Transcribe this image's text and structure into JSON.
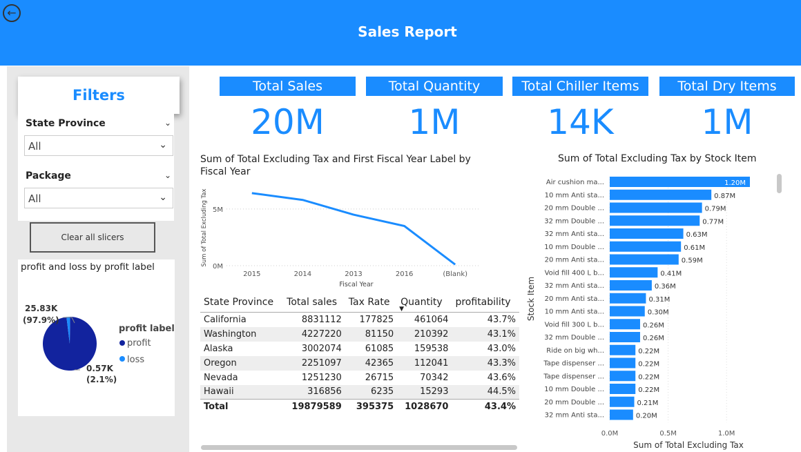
{
  "header": {
    "title": "Sales Report",
    "back_icon": "back-arrow-icon"
  },
  "filters": {
    "title": "Filters",
    "slicers": [
      {
        "label": "State Province",
        "value": "All"
      },
      {
        "label": "Package",
        "value": "All"
      }
    ],
    "clear_label": "Clear all slicers"
  },
  "kpis": [
    {
      "label": "Total Sales",
      "value": "20M"
    },
    {
      "label": "Total Quantity",
      "value": "1M"
    },
    {
      "label": "Total Chiller Items",
      "value": "14K"
    },
    {
      "label": "Total Dry Items",
      "value": "1M"
    }
  ],
  "pie": {
    "title": "profit and loss by profit label",
    "legend_title": "profit label",
    "slices": [
      {
        "label": "profit",
        "value": 25.83,
        "data_label": "25.83K",
        "pct_label": "(97.9%)",
        "color": "#12239e"
      },
      {
        "label": "loss",
        "value": 0.57,
        "data_label": "0.57K",
        "pct_label": "(2.1%)",
        "color": "#1a8cff"
      }
    ]
  },
  "line_chart": {
    "title": "Sum of Total Excluding Tax and First Fiscal Year Label by Fiscal Year",
    "xlabel": "Fiscal Year",
    "ylabel": "Sum of Total Excluding Tax",
    "y_ticks": [
      "0M",
      "5M"
    ],
    "color": "#1a8cff"
  },
  "table": {
    "columns": [
      "State Province",
      "Total sales",
      "Tax Rate",
      "Quantity",
      "profitability"
    ],
    "rows": [
      [
        "California",
        "8831112",
        "177825",
        "461064",
        "43.7%"
      ],
      [
        "Washington",
        "4227220",
        "81150",
        "210392",
        "43.1%"
      ],
      [
        "Alaska",
        "3002074",
        "61085",
        "159538",
        "43.0%"
      ],
      [
        "Oregon",
        "2251097",
        "42365",
        "112041",
        "43.3%"
      ],
      [
        "Nevada",
        "1251230",
        "26715",
        "70342",
        "43.6%"
      ],
      [
        "Hawaii",
        "316856",
        "6235",
        "15293",
        "44.5%"
      ]
    ],
    "total": [
      "Total",
      "19879589",
      "395375",
      "1028670",
      "43.4%"
    ],
    "sort_column": "Quantity"
  },
  "bar_chart": {
    "title": "Sum of Total Excluding Tax by Stock Item",
    "xlabel": "Sum of Total Excluding Tax",
    "ylabel": "Stock Item",
    "x_ticks": [
      "0.0M",
      "0.5M",
      "1.0M"
    ],
    "color": "#1a8cff"
  },
  "chart_data": [
    {
      "type": "line",
      "title": "Sum of Total Excluding Tax and First Fiscal Year Label by Fiscal Year",
      "xlabel": "Fiscal Year",
      "ylabel": "Sum of Total Excluding Tax",
      "x": [
        "2015",
        "2014",
        "2013",
        "2016",
        "(Blank)"
      ],
      "series": [
        {
          "values": [
            6.4,
            5.8,
            4.5,
            3.5,
            0.1
          ]
        }
      ],
      "ylim": [
        0,
        7
      ],
      "y_unit": "M"
    },
    {
      "type": "bar",
      "orientation": "horizontal",
      "title": "Sum of Total Excluding Tax by Stock Item",
      "xlabel": "Sum of Total Excluding Tax",
      "ylabel": "Stock Item",
      "categories": [
        "Air cushion ma...",
        "10 mm Anti sta...",
        "20 mm Double ...",
        "32 mm Double ...",
        "32 mm Anti sta...",
        "10 mm Double ...",
        "20 mm Anti sta...",
        "Void fill 400 L b...",
        "32 mm Anti sta...",
        "20 mm Anti sta...",
        "10 mm Anti sta...",
        "Void fill 300 L b...",
        "32 mm Double ...",
        "Ride on big wh...",
        "Tape dispenser ...",
        "Tape dispenser ...",
        "10 mm Double ...",
        "20 mm Double ...",
        "32 mm Anti sta..."
      ],
      "values": [
        1.2,
        0.87,
        0.79,
        0.77,
        0.63,
        0.61,
        0.59,
        0.41,
        0.36,
        0.31,
        0.3,
        0.26,
        0.26,
        0.22,
        0.22,
        0.22,
        0.22,
        0.21,
        0.2
      ],
      "labels": [
        "1.20M",
        "0.87M",
        "0.79M",
        "0.77M",
        "0.63M",
        "0.61M",
        "0.59M",
        "0.41M",
        "0.36M",
        "0.31M",
        "0.30M",
        "0.26M",
        "0.26M",
        "0.22M",
        "0.22M",
        "0.22M",
        "0.22M",
        "0.21M",
        "0.20M"
      ],
      "xlim": [
        0,
        1.2
      ],
      "x_unit": "M"
    },
    {
      "type": "pie",
      "title": "profit and loss by profit label",
      "categories": [
        "profit",
        "loss"
      ],
      "values": [
        25.83,
        0.57
      ],
      "unit": "K",
      "legend": "right"
    }
  ]
}
